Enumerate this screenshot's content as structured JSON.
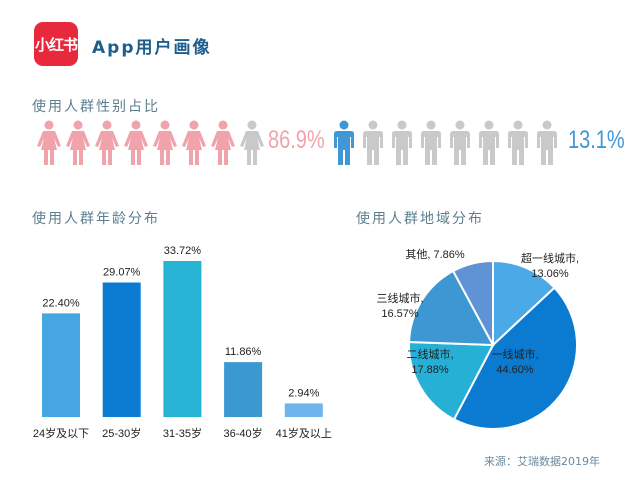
{
  "header": {
    "logo_text": "小红书",
    "title": "App用户画像"
  },
  "gender": {
    "title": "使用人群性别占比",
    "female": {
      "icon": "female-person-icon",
      "total": 8,
      "filled": 7,
      "percent": "86.9%",
      "color": "#f0a3ab"
    },
    "male": {
      "icon": "male-person-icon",
      "total": 8,
      "filled": 1,
      "percent": "13.1%",
      "color": "#3f97d6"
    },
    "empty_color": "#c9c9c9"
  },
  "chart_data": [
    {
      "type": "bar",
      "title": "使用人群年龄分布",
      "categories": [
        "24岁及以下",
        "25-30岁",
        "31-35岁",
        "36-40岁",
        "41岁及以上"
      ],
      "values": [
        22.4,
        29.07,
        33.72,
        11.86,
        2.94
      ],
      "labels": [
        "22.40%",
        "29.07%",
        "33.72%",
        "11.86%",
        "2.94%"
      ],
      "colors": [
        "#45a6e2",
        "#0a7bd0",
        "#27b3d4",
        "#3b98d1",
        "#6db5ec"
      ],
      "ylim": [
        0,
        35
      ],
      "grid": false
    },
    {
      "type": "pie",
      "title": "使用人群地域分布",
      "categories": [
        "超一线城市",
        "一线城市",
        "二线城市",
        "三线城市",
        "其他"
      ],
      "values": [
        13.06,
        44.6,
        17.88,
        16.57,
        7.86
      ],
      "labels": [
        "超一线城市,\n13.06%",
        "一线城市,\n44.60%",
        "二线城市,\n17.88%",
        "三线城市,\n16.57%",
        "其他, 7.86%"
      ],
      "colors": [
        "#4aa9e6",
        "#0a7bd0",
        "#26b0d6",
        "#3d97d2",
        "#5f93d6"
      ]
    }
  ],
  "source": "来源：艾瑞数据2019年"
}
